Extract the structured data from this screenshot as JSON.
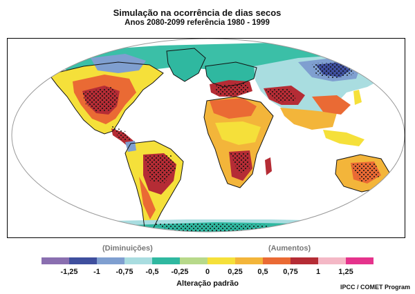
{
  "title": "Simulação na ocorrência de dias secos",
  "subtitle": "Anos 2080-2099 referência 1980 - 1999",
  "legend": {
    "decrease_label": "(Diminuições)",
    "increase_label": "(Aumentos)",
    "axis_label": "Alteração padrão",
    "tick_labels": [
      "-1,25",
      "-1",
      "-0,75",
      "-0,5",
      "-0,25",
      "0",
      "0,25",
      "0,5",
      "0,75",
      "1",
      "1,25"
    ],
    "colors": [
      "#8a6fb0",
      "#3f4f9e",
      "#7f9fd0",
      "#a9dde0",
      "#2fb8a0",
      "#b7d98a",
      "#f5e03a",
      "#f3b53a",
      "#ea6a34",
      "#b52c35",
      "#f4b8c6",
      "#e5338c"
    ]
  },
  "credit": "IPCC / COMET Program"
}
